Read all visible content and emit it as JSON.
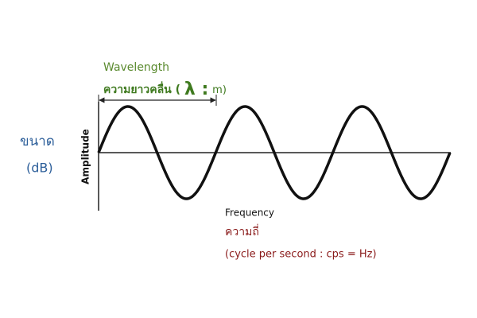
{
  "wavelength": {
    "label": "Wavelength",
    "thai": "ความยาวคลื่น (",
    "symbol": "λ :",
    "unit": "m)"
  },
  "amplitude": {
    "thai": "ขนาด",
    "unit": "(dB)",
    "axis_label": "Amplitude"
  },
  "frequency": {
    "axis_label": "Frequency",
    "thai": "ความถี่",
    "unit": "(cycle per second : cps = Hz)"
  }
}
